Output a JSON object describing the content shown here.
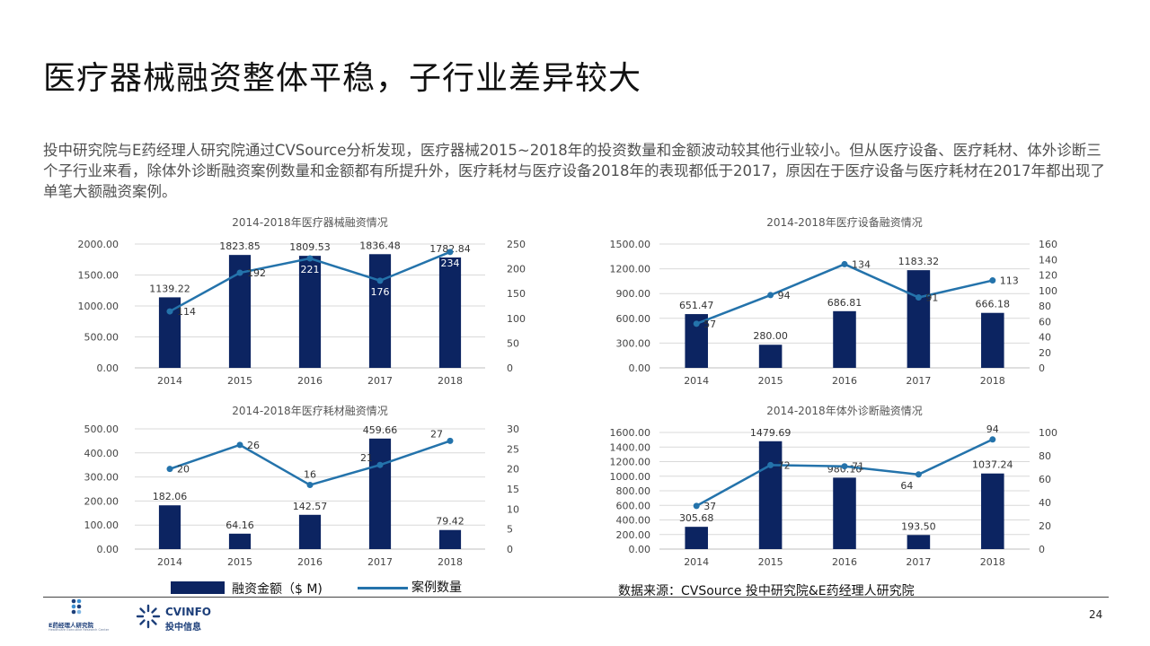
{
  "page": {
    "title": "医疗器械融资整体平稳，子行业差异较大",
    "intro": "投中研究院与E药经理人研究院通过CVSource分析发现，医疗器械2015~2018年的投资数量和金额波动较其他行业较小。但从医疗设备、医疗耗材、体外诊断三个子行业来看，除体外诊断融资案例数量和金额都有所提升外，医疗耗材与医疗设备2018年的表现都低于2017，原因在于医疗设备与医疗耗材在2017年都出现了单笔大额融资案例。",
    "page_number": "24",
    "legend": {
      "bar_label": "融资金额（$ M)",
      "line_label": "案例数量"
    },
    "source": "数据来源：CVSource      投中研究院&E药经理人研究院",
    "logos": {
      "e_yao": {
        "name": "E药经理人研究院",
        "sub": "Healthcare Executive Research Center"
      },
      "cvinfo": {
        "name": "CVINFO",
        "sub": "投中信息"
      }
    }
  },
  "colors": {
    "bar": "#0c2461",
    "line": "#2473ab",
    "grid": "#d9d9d9",
    "text": "#444444"
  },
  "chart_data": [
    {
      "type": "bar",
      "title": "2014-2018年医疗器械融资情况",
      "categories": [
        "2014",
        "2015",
        "2016",
        "2017",
        "2018"
      ],
      "series": [
        {
          "name": "融资金额（$ M)",
          "type": "bar",
          "axis": "left",
          "values": [
            1139.22,
            1823.85,
            1809.53,
            1836.48,
            1782.84
          ],
          "labels": [
            "1139.22",
            "1823.85",
            "1809.53",
            "1836.48",
            "1782.84"
          ]
        },
        {
          "name": "案例数量",
          "type": "line",
          "axis": "right",
          "values": [
            114,
            192,
            221,
            176,
            234
          ],
          "labels": [
            "114",
            "192",
            "221",
            "176",
            "234"
          ]
        }
      ],
      "ylim": [
        0,
        2000
      ],
      "yticks": [
        "0.00",
        "500.00",
        "1000.00",
        "1500.00",
        "2000.00"
      ],
      "y2lim": [
        0,
        250
      ],
      "y2ticks": [
        "0",
        "50",
        "100",
        "150",
        "200",
        "250"
      ],
      "xlabel": "",
      "ylabel": "",
      "grid": true
    },
    {
      "type": "bar",
      "title": "2014-2018年医疗设备融资情况",
      "categories": [
        "2014",
        "2015",
        "2016",
        "2017",
        "2018"
      ],
      "series": [
        {
          "name": "融资金额（$ M)",
          "type": "bar",
          "axis": "left",
          "values": [
            651.47,
            280.0,
            686.81,
            1183.32,
            666.18
          ],
          "labels": [
            "651.47",
            "280.00",
            "686.81",
            "1183.32",
            "666.18"
          ]
        },
        {
          "name": "案例数量",
          "type": "line",
          "axis": "right",
          "values": [
            57,
            94,
            134,
            91,
            113
          ],
          "labels": [
            "57",
            "94",
            "134",
            "91",
            "113"
          ]
        }
      ],
      "ylim": [
        0,
        1500
      ],
      "yticks": [
        "0.00",
        "300.00",
        "600.00",
        "900.00",
        "1200.00",
        "1500.00"
      ],
      "y2lim": [
        0,
        160
      ],
      "y2ticks": [
        "0",
        "20",
        "40",
        "60",
        "80",
        "100",
        "120",
        "140",
        "160"
      ],
      "xlabel": "",
      "ylabel": "",
      "grid": true
    },
    {
      "type": "bar",
      "title": "2014-2018年医疗耗材融资情况",
      "categories": [
        "2014",
        "2015",
        "2016",
        "2017",
        "2018"
      ],
      "series": [
        {
          "name": "融资金额（$ M)",
          "type": "bar",
          "axis": "left",
          "values": [
            182.06,
            64.16,
            142.57,
            459.66,
            79.42
          ],
          "labels": [
            "182.06",
            "64.16",
            "142.57",
            "459.66",
            "79.42"
          ]
        },
        {
          "name": "案例数量",
          "type": "line",
          "axis": "right",
          "values": [
            20,
            26,
            16,
            21,
            27
          ],
          "labels": [
            "20",
            "26",
            "16",
            "21",
            "27"
          ]
        }
      ],
      "ylim": [
        0,
        500
      ],
      "yticks": [
        "0.00",
        "100.00",
        "200.00",
        "300.00",
        "400.00",
        "500.00"
      ],
      "y2lim": [
        0,
        30
      ],
      "y2ticks": [
        "0",
        "5",
        "10",
        "15",
        "20",
        "25",
        "30"
      ],
      "xlabel": "",
      "ylabel": "",
      "grid": true
    },
    {
      "type": "bar",
      "title": "2014-2018年体外诊断融资情况",
      "categories": [
        "2014",
        "2015",
        "2016",
        "2017",
        "2018"
      ],
      "series": [
        {
          "name": "融资金额（$ M)",
          "type": "bar",
          "axis": "left",
          "values": [
            305.68,
            1479.69,
            980.16,
            193.5,
            1037.24
          ],
          "labels": [
            "305.68",
            "1479.69",
            "980.16",
            "193.50",
            "1037.24"
          ]
        },
        {
          "name": "案例数量",
          "type": "line",
          "axis": "right",
          "values": [
            37,
            72,
            71,
            64,
            94
          ],
          "labels": [
            "37",
            "72",
            "71",
            "64",
            "94"
          ]
        }
      ],
      "ylim": [
        0,
        1600
      ],
      "yticks": [
        "0.00",
        "200.00",
        "400.00",
        "600.00",
        "800.00",
        "1000.00",
        "1200.00",
        "1400.00",
        "1600.00"
      ],
      "y2lim": [
        0,
        100
      ],
      "y2ticks": [
        "0",
        "20",
        "40",
        "60",
        "80",
        "100"
      ],
      "xlabel": "",
      "ylabel": "",
      "grid": true
    }
  ]
}
